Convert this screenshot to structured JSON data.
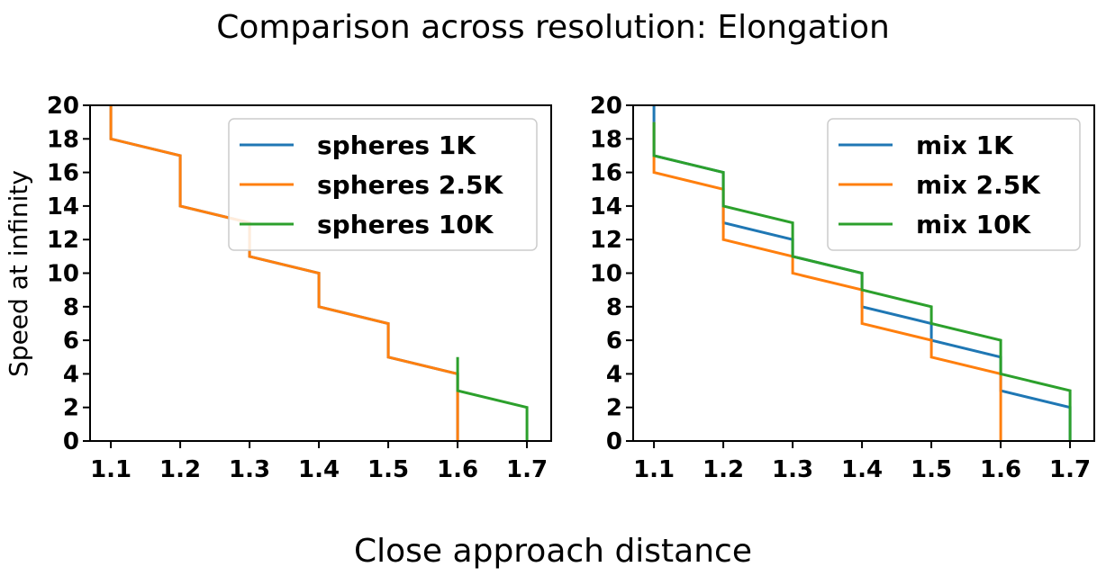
{
  "figure": {
    "title": "Comparison across resolution: Elongation",
    "xlabel": "Close approach distance",
    "ylabel": "Speed at infinity"
  },
  "colors": {
    "blue": "#1f77b4",
    "orange": "#ff7f0e",
    "green": "#2ca02c"
  },
  "chart_data": [
    {
      "type": "line",
      "step": true,
      "title": "",
      "xlim": [
        1.07,
        1.735
      ],
      "ylim": [
        0,
        20
      ],
      "xticks": [
        1.1,
        1.2,
        1.3,
        1.4,
        1.5,
        1.6,
        1.7
      ],
      "yticks": [
        0,
        2,
        4,
        6,
        8,
        10,
        12,
        14,
        16,
        18,
        20
      ],
      "xtick_labels": [
        "1.1",
        "1.2",
        "1.3",
        "1.4",
        "1.5",
        "1.6",
        "1.7"
      ],
      "ytick_labels": [
        "0",
        "2",
        "4",
        "6",
        "8",
        "10",
        "12",
        "14",
        "16",
        "18",
        "20"
      ],
      "legend": "top-right",
      "series": [
        {
          "name": "spheres 1K",
          "color": "#1f77b4",
          "points": [
            [
              1.1,
              20
            ],
            [
              1.1,
              18
            ],
            [
              1.2,
              17
            ],
            [
              1.2,
              14
            ],
            [
              1.3,
              13
            ],
            [
              1.3,
              11
            ],
            [
              1.4,
              10
            ],
            [
              1.4,
              8
            ],
            [
              1.5,
              7
            ],
            [
              1.5,
              5
            ],
            [
              1.6,
              4
            ],
            [
              1.6,
              0
            ]
          ]
        },
        {
          "name": "spheres 2.5K",
          "color": "#ff7f0e",
          "points": [
            [
              1.1,
              20
            ],
            [
              1.1,
              18
            ],
            [
              1.2,
              17
            ],
            [
              1.2,
              14
            ],
            [
              1.3,
              13
            ],
            [
              1.3,
              11
            ],
            [
              1.4,
              10
            ],
            [
              1.4,
              8
            ],
            [
              1.5,
              7
            ],
            [
              1.5,
              5
            ],
            [
              1.6,
              4
            ],
            [
              1.6,
              0
            ]
          ]
        },
        {
          "name": "spheres 10K",
          "color": "#2ca02c",
          "points": [
            [
              1.6,
              5
            ],
            [
              1.6,
              3
            ],
            [
              1.7,
              2
            ],
            [
              1.7,
              0
            ]
          ]
        }
      ]
    },
    {
      "type": "line",
      "step": true,
      "title": "",
      "xlim": [
        1.07,
        1.735
      ],
      "ylim": [
        0,
        20
      ],
      "xticks": [
        1.1,
        1.2,
        1.3,
        1.4,
        1.5,
        1.6,
        1.7
      ],
      "yticks": [
        0,
        2,
        4,
        6,
        8,
        10,
        12,
        14,
        16,
        18,
        20
      ],
      "xtick_labels": [
        "1.1",
        "1.2",
        "1.3",
        "1.4",
        "1.5",
        "1.6",
        "1.7"
      ],
      "ytick_labels": [
        "0",
        "2",
        "4",
        "6",
        "8",
        "10",
        "12",
        "14",
        "16",
        "18",
        "20"
      ],
      "legend": "top-right",
      "series": [
        {
          "name": "mix 1K",
          "color": "#1f77b4",
          "points": [
            [
              1.1,
              20
            ],
            [
              1.1,
              17
            ],
            [
              1.2,
              16
            ],
            [
              1.2,
              13
            ],
            [
              1.3,
              12
            ],
            [
              1.3,
              11
            ],
            [
              1.4,
              10
            ],
            [
              1.4,
              8
            ],
            [
              1.5,
              7
            ],
            [
              1.5,
              6
            ],
            [
              1.6,
              5
            ],
            [
              1.6,
              3
            ],
            [
              1.7,
              2
            ],
            [
              1.7,
              0
            ]
          ]
        },
        {
          "name": "mix 2.5K",
          "color": "#ff7f0e",
          "points": [
            [
              1.1,
              19
            ],
            [
              1.1,
              16
            ],
            [
              1.2,
              15
            ],
            [
              1.2,
              12
            ],
            [
              1.3,
              11
            ],
            [
              1.3,
              10
            ],
            [
              1.4,
              9
            ],
            [
              1.4,
              7
            ],
            [
              1.5,
              6
            ],
            [
              1.5,
              5
            ],
            [
              1.6,
              4
            ],
            [
              1.6,
              0
            ]
          ]
        },
        {
          "name": "mix 10K",
          "color": "#2ca02c",
          "points": [
            [
              1.1,
              19
            ],
            [
              1.1,
              17
            ],
            [
              1.2,
              16
            ],
            [
              1.2,
              14
            ],
            [
              1.3,
              13
            ],
            [
              1.3,
              11
            ],
            [
              1.4,
              10
            ],
            [
              1.4,
              9
            ],
            [
              1.5,
              8
            ],
            [
              1.5,
              7
            ],
            [
              1.6,
              6
            ],
            [
              1.6,
              4
            ],
            [
              1.7,
              3
            ],
            [
              1.7,
              0
            ]
          ]
        }
      ]
    }
  ]
}
